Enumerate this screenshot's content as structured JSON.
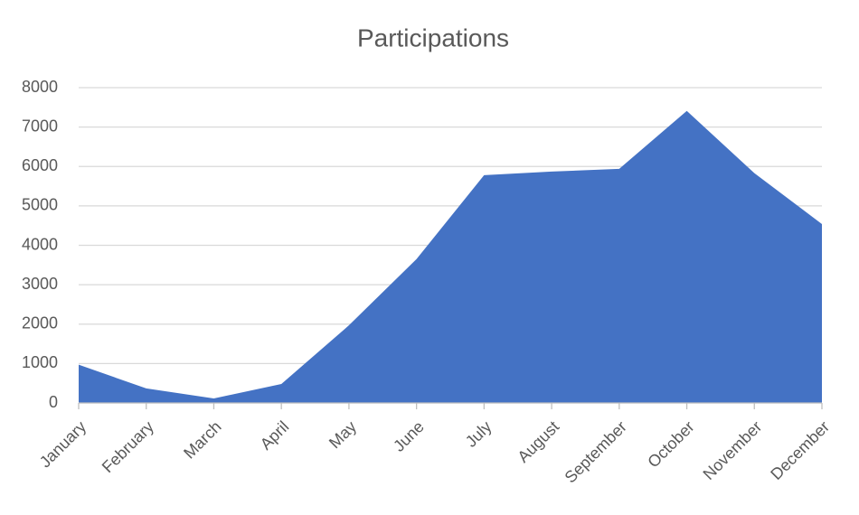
{
  "chart_data": {
    "type": "area",
    "title": "Participations",
    "categories": [
      "January",
      "February",
      "March",
      "April",
      "May",
      "June",
      "July",
      "August",
      "September",
      "October",
      "November",
      "December"
    ],
    "values": [
      970,
      370,
      115,
      480,
      1970,
      3650,
      5780,
      5870,
      5940,
      7410,
      5830,
      4540
    ],
    "color": "#4472c4",
    "ylim": [
      0,
      8000
    ],
    "yticks": [
      0,
      1000,
      2000,
      3000,
      4000,
      5000,
      6000,
      7000,
      8000
    ],
    "grid": true
  }
}
